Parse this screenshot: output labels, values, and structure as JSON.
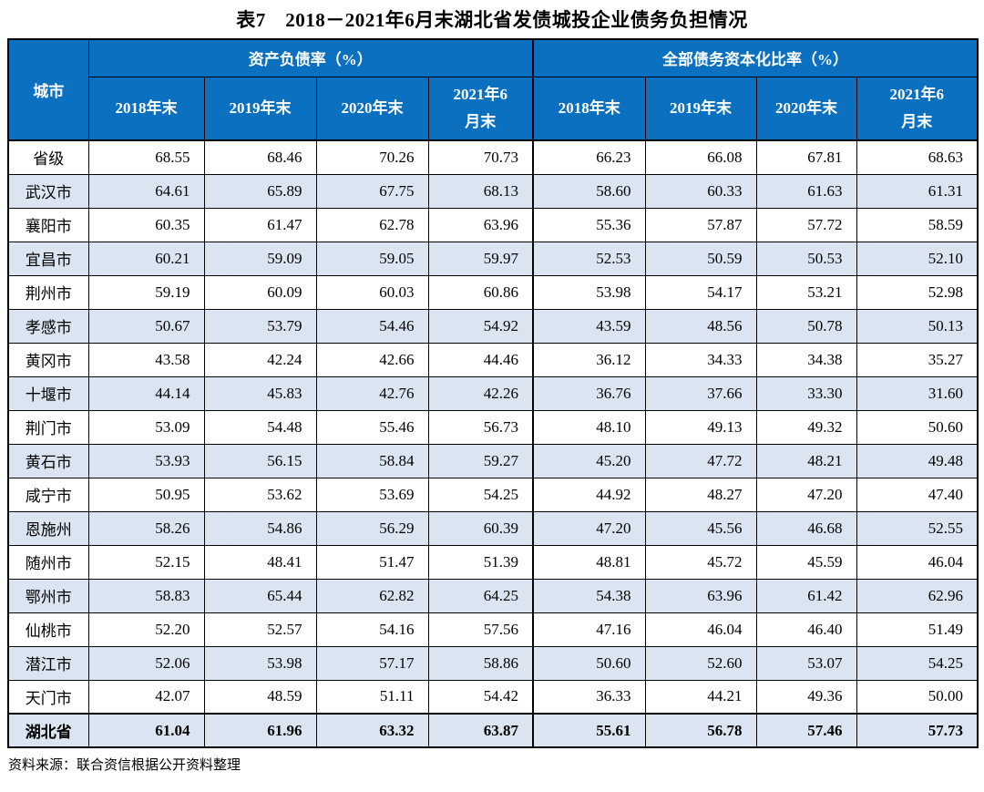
{
  "title": "表7　2018－2021年6月末湖北省发债城投企业债务负担情况",
  "source": "资料来源：联合资信根据公开资料整理",
  "colors": {
    "header_bg": "#0a70bf",
    "header_text": "#ffffff",
    "stripe_row_bg": "#dbe5f1",
    "border": "#000000"
  },
  "table": {
    "city_header": "城市",
    "groups": [
      {
        "label": "资产负债率（%）"
      },
      {
        "label": "全部债务资本化比率（%）"
      }
    ],
    "year_headers": [
      "2018年末",
      "2019年末",
      "2020年末",
      "2021年6\n月末"
    ],
    "rows": [
      {
        "city": "省级",
        "alr": [
          "68.55",
          "68.46",
          "70.26",
          "70.73"
        ],
        "dcr": [
          "66.23",
          "66.08",
          "67.81",
          "68.63"
        ],
        "bold": false
      },
      {
        "city": "武汉市",
        "alr": [
          "64.61",
          "65.89",
          "67.75",
          "68.13"
        ],
        "dcr": [
          "58.60",
          "60.33",
          "61.63",
          "61.31"
        ],
        "bold": false
      },
      {
        "city": "襄阳市",
        "alr": [
          "60.35",
          "61.47",
          "62.78",
          "63.96"
        ],
        "dcr": [
          "55.36",
          "57.87",
          "57.72",
          "58.59"
        ],
        "bold": false
      },
      {
        "city": "宜昌市",
        "alr": [
          "60.21",
          "59.09",
          "59.05",
          "59.97"
        ],
        "dcr": [
          "52.53",
          "50.59",
          "50.53",
          "52.10"
        ],
        "bold": false
      },
      {
        "city": "荆州市",
        "alr": [
          "59.19",
          "60.09",
          "60.03",
          "60.86"
        ],
        "dcr": [
          "53.98",
          "54.17",
          "53.21",
          "52.98"
        ],
        "bold": false
      },
      {
        "city": "孝感市",
        "alr": [
          "50.67",
          "53.79",
          "54.46",
          "54.92"
        ],
        "dcr": [
          "43.59",
          "48.56",
          "50.78",
          "50.13"
        ],
        "bold": false
      },
      {
        "city": "黄冈市",
        "alr": [
          "43.58",
          "42.24",
          "42.66",
          "44.46"
        ],
        "dcr": [
          "36.12",
          "34.33",
          "34.38",
          "35.27"
        ],
        "bold": false
      },
      {
        "city": "十堰市",
        "alr": [
          "44.14",
          "45.83",
          "42.76",
          "42.26"
        ],
        "dcr": [
          "36.76",
          "37.66",
          "33.30",
          "31.60"
        ],
        "bold": false
      },
      {
        "city": "荆门市",
        "alr": [
          "53.09",
          "54.48",
          "55.46",
          "56.73"
        ],
        "dcr": [
          "48.10",
          "49.13",
          "49.32",
          "50.60"
        ],
        "bold": false
      },
      {
        "city": "黄石市",
        "alr": [
          "53.93",
          "56.15",
          "58.84",
          "59.27"
        ],
        "dcr": [
          "45.20",
          "47.72",
          "48.21",
          "49.48"
        ],
        "bold": false
      },
      {
        "city": "咸宁市",
        "alr": [
          "50.95",
          "53.62",
          "53.69",
          "54.25"
        ],
        "dcr": [
          "44.92",
          "48.27",
          "47.20",
          "47.40"
        ],
        "bold": false
      },
      {
        "city": "恩施州",
        "alr": [
          "58.26",
          "54.86",
          "56.29",
          "60.39"
        ],
        "dcr": [
          "47.20",
          "45.56",
          "46.68",
          "52.55"
        ],
        "bold": false
      },
      {
        "city": "随州市",
        "alr": [
          "52.15",
          "48.41",
          "51.47",
          "51.39"
        ],
        "dcr": [
          "48.81",
          "45.72",
          "45.59",
          "46.04"
        ],
        "bold": false
      },
      {
        "city": "鄂州市",
        "alr": [
          "58.83",
          "65.44",
          "62.82",
          "64.25"
        ],
        "dcr": [
          "54.38",
          "63.96",
          "61.42",
          "62.96"
        ],
        "bold": false
      },
      {
        "city": "仙桃市",
        "alr": [
          "52.20",
          "52.57",
          "54.16",
          "57.56"
        ],
        "dcr": [
          "47.16",
          "46.04",
          "46.40",
          "51.49"
        ],
        "bold": false
      },
      {
        "city": "潜江市",
        "alr": [
          "52.06",
          "53.98",
          "57.17",
          "58.86"
        ],
        "dcr": [
          "50.60",
          "52.60",
          "53.07",
          "54.25"
        ],
        "bold": false
      },
      {
        "city": "天门市",
        "alr": [
          "42.07",
          "48.59",
          "51.11",
          "54.42"
        ],
        "dcr": [
          "36.33",
          "44.21",
          "49.36",
          "50.00"
        ],
        "bold": false
      },
      {
        "city": "湖北省",
        "alr": [
          "61.04",
          "61.96",
          "63.32",
          "63.87"
        ],
        "dcr": [
          "55.61",
          "56.78",
          "57.46",
          "57.73"
        ],
        "bold": true
      }
    ]
  }
}
